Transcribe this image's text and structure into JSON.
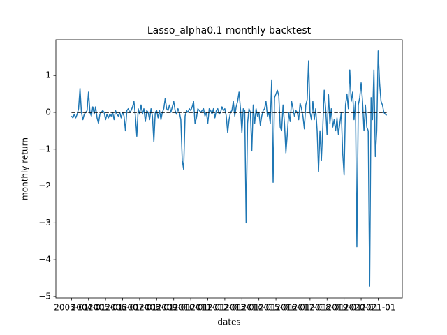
{
  "chart_data": {
    "type": "line",
    "title": "Lasso_alpha0.1 monthly backtest",
    "x_label": "dates",
    "y_label": "monthly return",
    "x": [
      "2003-01",
      "2003-02",
      "2003-03",
      "2003-04",
      "2003-05",
      "2003-06",
      "2003-07",
      "2003-08",
      "2003-09",
      "2003-10",
      "2003-11",
      "2003-12",
      "2004-01",
      "2004-02",
      "2004-03",
      "2004-04",
      "2004-05",
      "2004-06",
      "2004-07",
      "2004-08",
      "2004-09",
      "2004-10",
      "2004-11",
      "2004-12",
      "2005-01",
      "2005-02",
      "2005-03",
      "2005-04",
      "2005-05",
      "2005-06",
      "2005-07",
      "2005-08",
      "2005-09",
      "2005-10",
      "2005-11",
      "2005-12",
      "2006-01",
      "2006-02",
      "2006-03",
      "2006-04",
      "2006-05",
      "2006-06",
      "2006-07",
      "2006-08",
      "2006-09",
      "2006-10",
      "2006-11",
      "2006-12",
      "2007-01",
      "2007-02",
      "2007-03",
      "2007-04",
      "2007-05",
      "2007-06",
      "2007-07",
      "2007-08",
      "2007-09",
      "2007-10",
      "2007-11",
      "2007-12",
      "2008-01",
      "2008-02",
      "2008-03",
      "2008-04",
      "2008-05",
      "2008-06",
      "2008-07",
      "2008-08",
      "2008-09",
      "2008-10",
      "2008-11",
      "2008-12",
      "2009-01",
      "2009-02",
      "2009-03",
      "2009-04",
      "2009-05",
      "2009-06",
      "2009-07",
      "2009-08",
      "2009-09",
      "2009-10",
      "2009-11",
      "2009-12",
      "2010-01",
      "2010-02",
      "2010-03",
      "2010-04",
      "2010-05",
      "2010-06",
      "2010-07",
      "2010-08",
      "2010-09",
      "2010-10",
      "2010-11",
      "2010-12",
      "2011-01",
      "2011-02",
      "2011-03",
      "2011-04",
      "2011-05",
      "2011-06",
      "2011-07",
      "2011-08",
      "2011-09",
      "2011-10",
      "2011-11",
      "2011-12",
      "2012-01",
      "2012-02",
      "2012-03",
      "2012-04",
      "2012-05",
      "2012-06",
      "2012-07",
      "2012-08",
      "2012-09",
      "2012-10",
      "2012-11",
      "2012-12",
      "2013-01",
      "2013-02",
      "2013-03",
      "2013-04",
      "2013-05",
      "2013-06",
      "2013-07",
      "2013-08",
      "2013-09",
      "2013-10",
      "2013-11",
      "2013-12",
      "2014-01",
      "2014-02",
      "2014-03",
      "2014-04",
      "2014-05",
      "2014-06",
      "2014-07",
      "2014-08",
      "2014-09",
      "2014-10",
      "2014-11",
      "2014-12",
      "2015-01",
      "2015-02",
      "2015-03",
      "2015-04",
      "2015-05",
      "2015-06",
      "2015-07",
      "2015-08",
      "2015-09",
      "2015-10",
      "2015-11",
      "2015-12",
      "2016-01",
      "2016-02",
      "2016-03",
      "2016-04",
      "2016-05",
      "2016-06",
      "2016-07",
      "2016-08",
      "2016-09",
      "2016-10",
      "2016-11",
      "2016-12",
      "2017-01",
      "2017-02",
      "2017-03",
      "2017-04",
      "2017-05",
      "2017-06",
      "2017-07",
      "2017-08",
      "2017-09",
      "2017-10",
      "2017-11",
      "2017-12",
      "2018-01",
      "2018-02",
      "2018-03",
      "2018-04",
      "2018-05",
      "2018-06",
      "2018-07",
      "2018-08",
      "2018-09",
      "2018-10",
      "2018-11",
      "2018-12",
      "2019-01",
      "2019-02",
      "2019-03",
      "2019-04",
      "2019-05",
      "2019-06",
      "2019-07",
      "2019-08",
      "2019-09",
      "2019-10",
      "2019-11",
      "2019-12",
      "2020-01",
      "2020-02",
      "2020-03",
      "2020-04",
      "2020-05",
      "2020-06",
      "2020-07",
      "2020-08",
      "2020-09",
      "2020-10",
      "2020-11",
      "2020-12",
      "2021-01",
      "2021-02",
      "2021-03",
      "2021-04",
      "2021-05",
      "2021-06",
      "2021-07"
    ],
    "values": [
      -0.1,
      -0.15,
      -0.05,
      -0.15,
      -0.05,
      0.1,
      0.65,
      0.0,
      -0.2,
      -0.05,
      0.0,
      0.05,
      0.55,
      0.0,
      -0.1,
      0.15,
      -0.05,
      0.15,
      -0.15,
      -0.3,
      -0.05,
      0.0,
      0.05,
      0.0,
      -0.2,
      -0.05,
      -0.15,
      -0.05,
      -0.1,
      0.0,
      -0.2,
      0.05,
      -0.05,
      -0.1,
      0.0,
      -0.15,
      0.0,
      -0.1,
      -0.5,
      0.05,
      0.1,
      0.0,
      0.05,
      0.15,
      0.3,
      -0.1,
      -0.65,
      0.1,
      -0.05,
      0.2,
      -0.05,
      0.1,
      -0.25,
      0.05,
      0.0,
      -0.2,
      0.1,
      -0.1,
      -0.8,
      0.0,
      0.05,
      -0.15,
      0.05,
      -0.2,
      0.0,
      0.1,
      0.38,
      0.1,
      0.05,
      0.2,
      0.0,
      0.15,
      0.3,
      0.05,
      -0.05,
      0.1,
      0.0,
      -0.2,
      -1.3,
      -1.55,
      -0.1,
      0.05,
      0.0,
      0.1,
      0.05,
      0.15,
      0.3,
      -0.3,
      -0.15,
      0.1,
      0.05,
      0.0,
      0.05,
      0.1,
      -0.1,
      0.0,
      -0.3,
      0.1,
      0.05,
      -0.05,
      0.1,
      -0.15,
      0.05,
      0.1,
      -0.05,
      0.0,
      0.15,
      0.05,
      0.1,
      -0.1,
      -0.55,
      -0.2,
      0.0,
      0.05,
      0.3,
      -0.1,
      0.15,
      0.3,
      0.55,
      0.1,
      -0.55,
      0.1,
      0.05,
      -3.0,
      -0.3,
      0.1,
      0.0,
      -1.05,
      0.2,
      -0.3,
      0.1,
      -0.1,
      0.0,
      -0.35,
      -0.1,
      0.05,
      0.1,
      0.3,
      -0.1,
      0.0,
      -0.3,
      0.88,
      -1.9,
      0.4,
      0.5,
      0.6,
      0.45,
      -0.4,
      -0.5,
      0.2,
      -0.3,
      -1.1,
      -0.6,
      0.0,
      -0.25,
      0.3,
      0.1,
      -0.1,
      0.05,
      0.0,
      -0.2,
      0.25,
      0.1,
      -0.1,
      -0.45,
      0.2,
      0.35,
      1.4,
      0.0,
      -0.2,
      0.3,
      -0.2,
      0.1,
      -0.5,
      -1.6,
      -0.5,
      -1.3,
      -0.4,
      0.6,
      0.1,
      -0.6,
      0.48,
      -0.3,
      0.1,
      -0.4,
      -0.2,
      -0.5,
      -0.15,
      -0.6,
      -0.3,
      0.0,
      -1.1,
      -1.7,
      0.2,
      0.5,
      0.1,
      1.15,
      0.3,
      0.55,
      -0.2,
      0.3,
      -3.65,
      0.2,
      0.4,
      0.8,
      0.3,
      -0.5,
      0.2,
      -0.4,
      -0.5,
      -4.72,
      0.4,
      -0.2,
      1.15,
      -1.2,
      -0.5,
      1.67,
      0.8,
      0.3,
      0.2,
      0.0,
      -0.05,
      -0.08
    ],
    "color": "#1f77b4",
    "baseline": 0,
    "baseline_color": "#000000",
    "xlim": [
      "2002-02",
      "2022-06"
    ],
    "xticks": [
      "2003-01",
      "2004-01",
      "2005-01",
      "2006-01",
      "2007-01",
      "2008-01",
      "2009-01",
      "2010-01",
      "2011-01",
      "2012-01",
      "2013-01",
      "2014-01",
      "2015-01",
      "2016-01",
      "2017-01",
      "2018-01",
      "2019-01",
      "2020-01",
      "2021-01"
    ],
    "ylim": [
      -5.04,
      1.97
    ],
    "yticks": [
      {
        "value": -5,
        "label": "−5"
      },
      {
        "value": -4,
        "label": "−4"
      },
      {
        "value": -3,
        "label": "−3"
      },
      {
        "value": -2,
        "label": "−2"
      },
      {
        "value": -1,
        "label": "−1"
      },
      0,
      1
    ]
  }
}
